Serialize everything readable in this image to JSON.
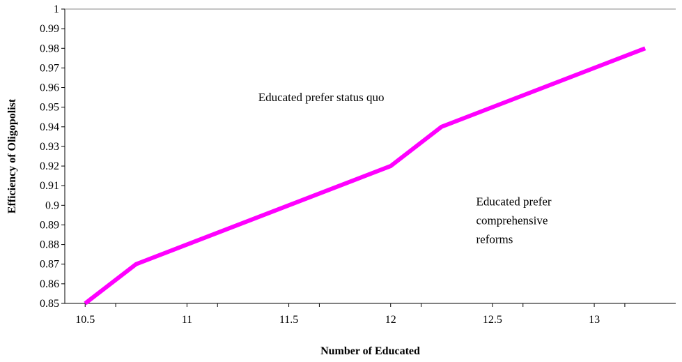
{
  "chart_data": {
    "type": "line",
    "title": "",
    "xlabel": "Number of Educated",
    "ylabel": "Efficiency of Oligopolist",
    "xlim": [
      10.4,
      13.4
    ],
    "ylim": [
      0.85,
      1.0
    ],
    "grid": false,
    "legend": "none",
    "x_ticks": [
      {
        "value": 10.5,
        "label": "10.5"
      },
      {
        "value": 11,
        "label": "11"
      },
      {
        "value": 11.5,
        "label": "11.5"
      },
      {
        "value": 12,
        "label": "12"
      },
      {
        "value": 12.5,
        "label": "12.5"
      },
      {
        "value": 13,
        "label": "13"
      }
    ],
    "y_ticks": [
      {
        "value": 0.85,
        "label": "0.85"
      },
      {
        "value": 0.86,
        "label": "0.86"
      },
      {
        "value": 0.87,
        "label": "0.87"
      },
      {
        "value": 0.88,
        "label": "0.88"
      },
      {
        "value": 0.89,
        "label": "0.89"
      },
      {
        "value": 0.9,
        "label": "0.9"
      },
      {
        "value": 0.91,
        "label": "0.91"
      },
      {
        "value": 0.92,
        "label": "0.92"
      },
      {
        "value": 0.93,
        "label": "0.93"
      },
      {
        "value": 0.94,
        "label": "0.94"
      },
      {
        "value": 0.95,
        "label": "0.95"
      },
      {
        "value": 0.96,
        "label": "0.96"
      },
      {
        "value": 0.97,
        "label": "0.97"
      },
      {
        "value": 0.98,
        "label": "0.98"
      },
      {
        "value": 0.99,
        "label": "0.99"
      },
      {
        "value": 1.0,
        "label": "1"
      }
    ],
    "series": [
      {
        "color": "#ff00ff",
        "x": [
          10.5,
          10.75,
          12.0,
          12.25,
          13.25
        ],
        "y": [
          0.85,
          0.87,
          0.92,
          0.94,
          0.98
        ]
      }
    ],
    "annotations": [
      {
        "lines": [
          "Educated  prefer status quo"
        ],
        "at": [
          11.35,
          0.953
        ]
      },
      {
        "lines": [
          "Educated prefer",
          "comprehensive",
          "reforms"
        ],
        "at": [
          12.42,
          0.9
        ]
      }
    ]
  }
}
